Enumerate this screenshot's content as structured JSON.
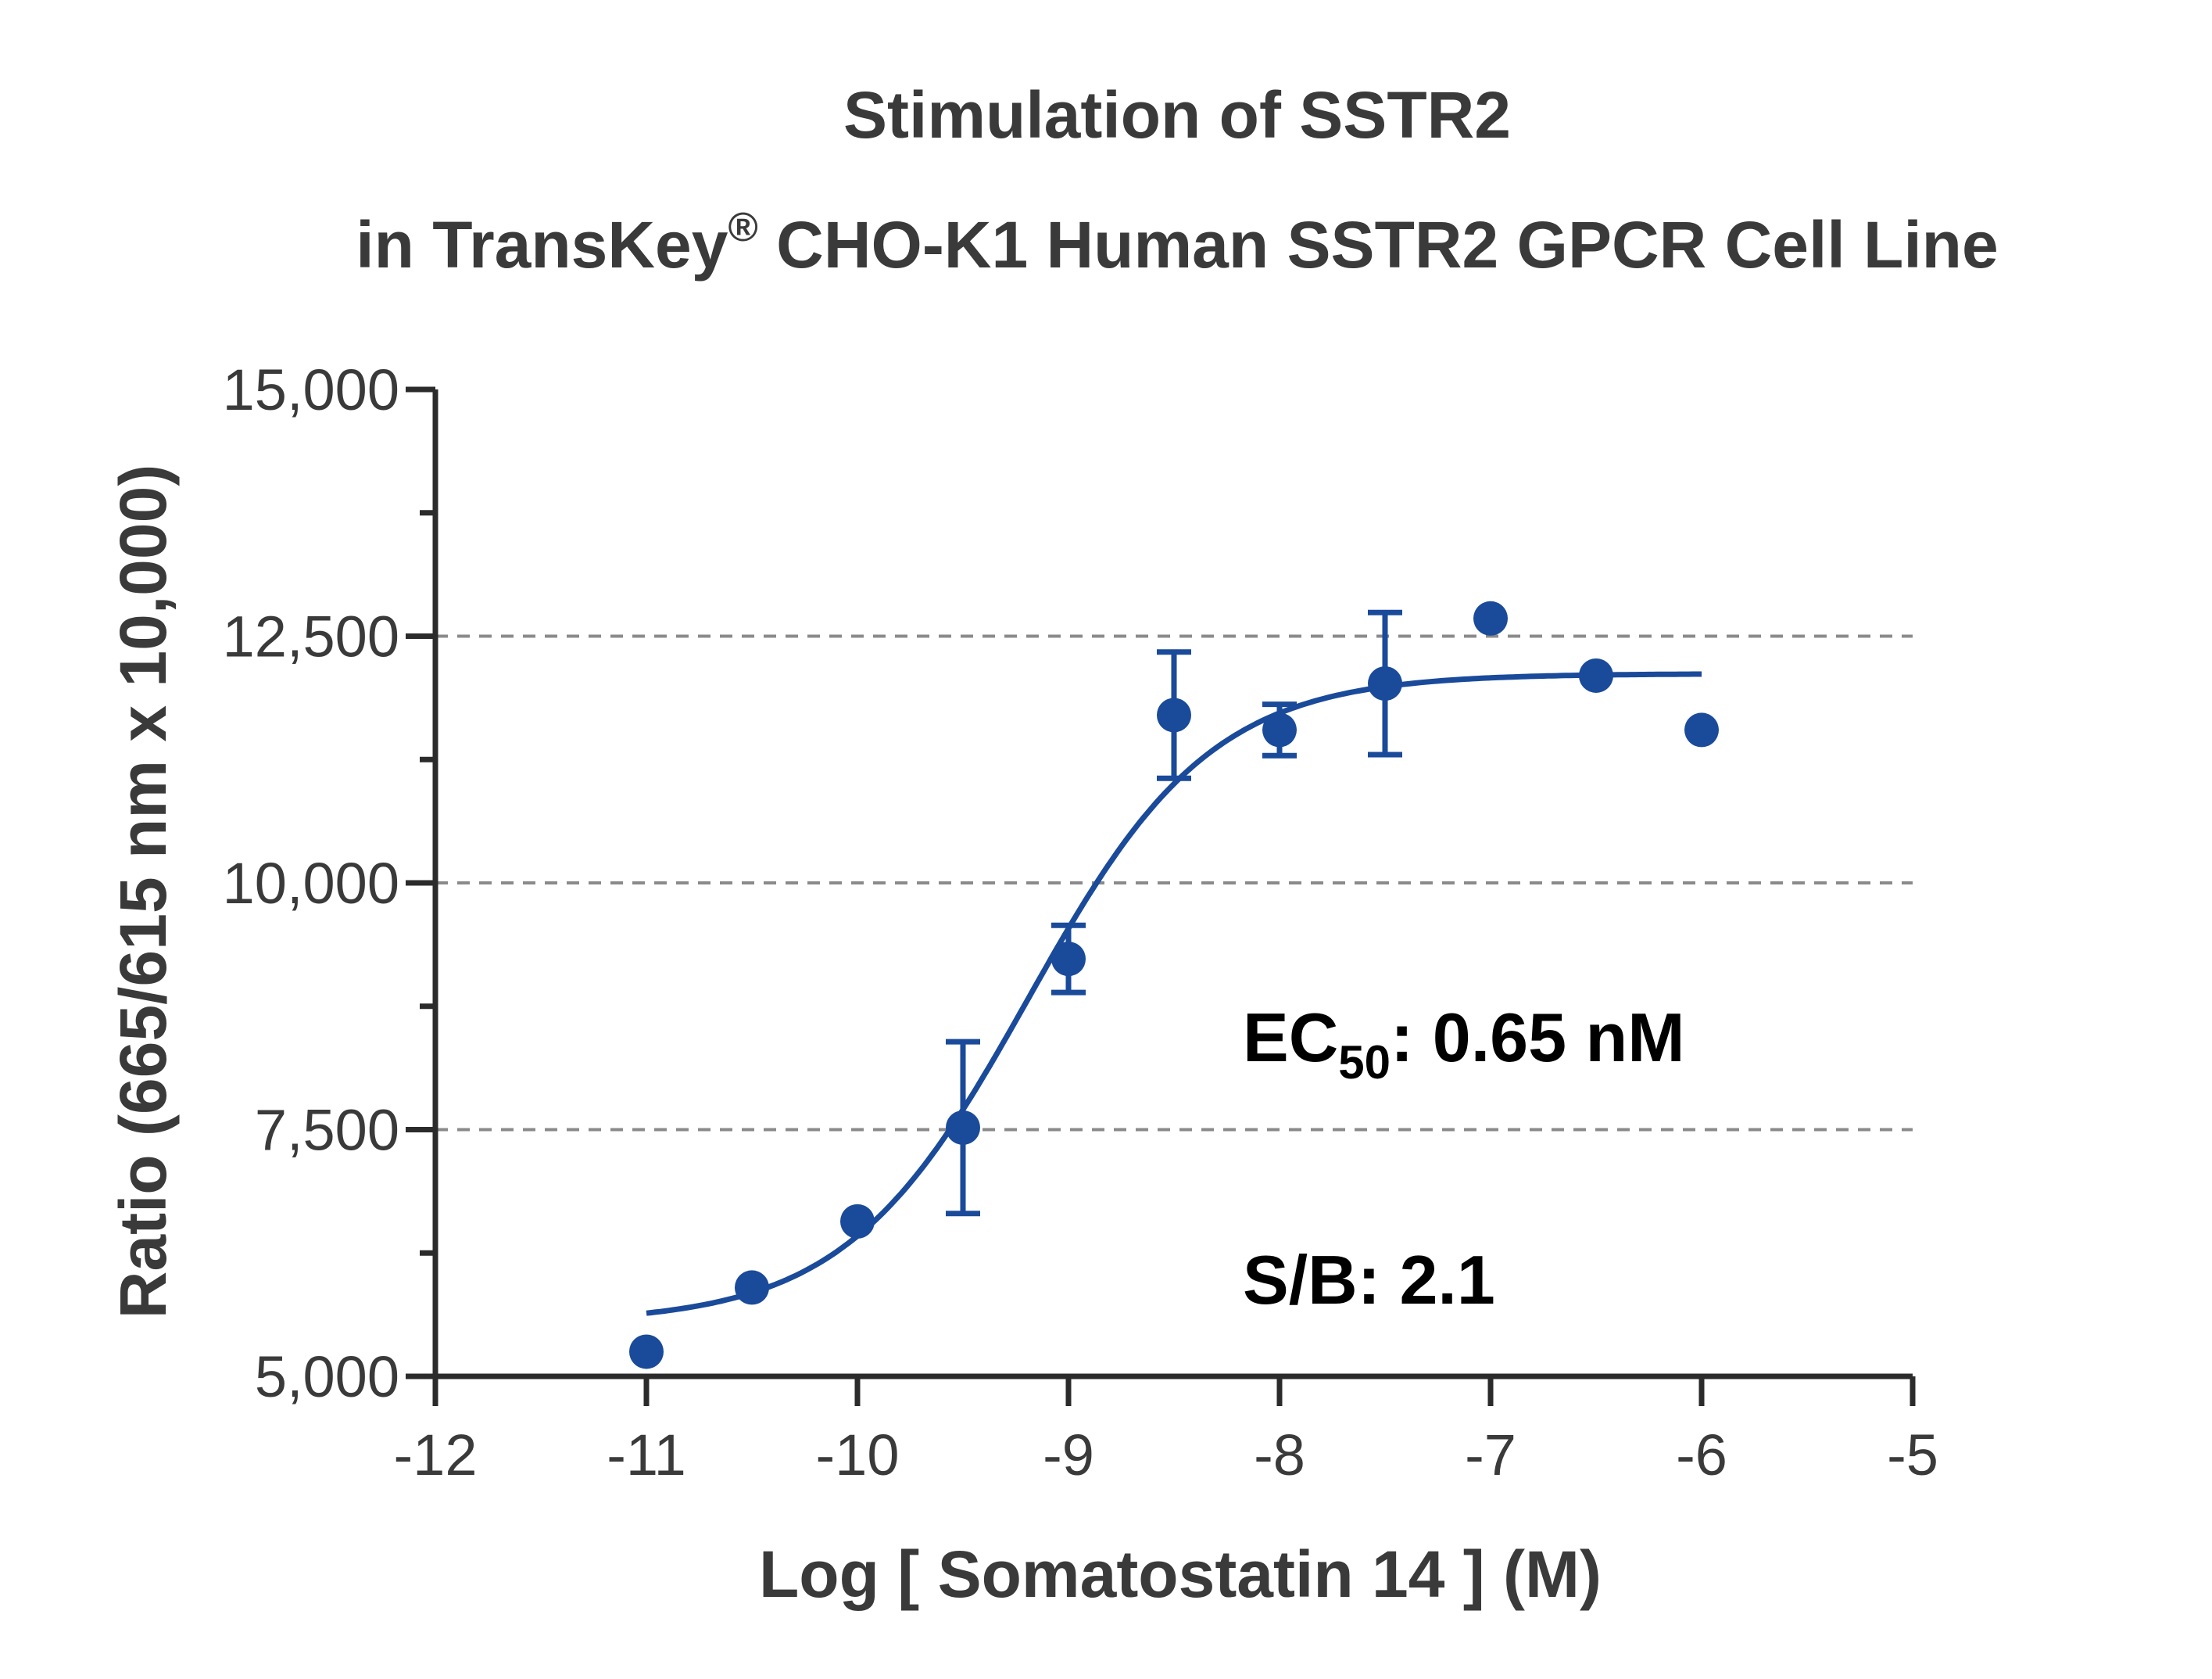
{
  "chart_data": {
    "type": "scatter",
    "title": "Stimulation of  SSTR2",
    "subtitle_prefix": "in TransKey",
    "subtitle_superscript": "®",
    "subtitle_suffix": " CHO-K1 Human SSTR2 GPCR Cell Line",
    "xlabel": "Log [ Somatostatin 14 ]  (M)",
    "ylabel": "Ratio (665/615 nm x 10,000)",
    "xlim": [
      -12,
      -5
    ],
    "ylim": [
      5000,
      15000
    ],
    "x_ticks": [
      -12,
      -11,
      -10,
      -9,
      -8,
      -7,
      -6,
      -5
    ],
    "x_tick_labels": [
      "-12",
      "-11",
      "-10",
      "-9",
      "-8",
      "-7",
      "-6",
      "-5"
    ],
    "y_major_ticks": [
      5000,
      7500,
      10000,
      12500,
      15000
    ],
    "y_tick_labels": [
      "5,000",
      "7,500",
      "10,000",
      "12,500",
      "15,000"
    ],
    "y_minor_ticks": [
      6250,
      8750,
      11250,
      13750
    ],
    "grid": "dashed horizontal at 7,500, 10,000, 12,500",
    "series": [
      {
        "x": [
          -11,
          -10.5,
          -10,
          -9.5,
          -9,
          -8.5,
          -8,
          -7.5,
          -7,
          -6.5,
          -6
        ],
        "y": [
          5250,
          5900,
          6570,
          7520,
          9230,
          11700,
          11550,
          12020,
          12680,
          12100,
          11550
        ],
        "error": [
          0,
          0,
          0,
          870,
          340,
          640,
          260,
          720,
          0,
          0,
          0
        ],
        "color": "#1a4a9a"
      }
    ],
    "fit": {
      "model": "4PL",
      "x_range": [
        -11,
        -6
      ],
      "bottom": 5540,
      "top": 12120,
      "log_ec50": -9.19,
      "hill_slope": 1.0
    },
    "annotations": {
      "ec50_prefix": "EC",
      "ec50_sub": "50",
      "ec50_suffix": ": 0.65 nM",
      "sb": "S/B: 2.1"
    }
  }
}
